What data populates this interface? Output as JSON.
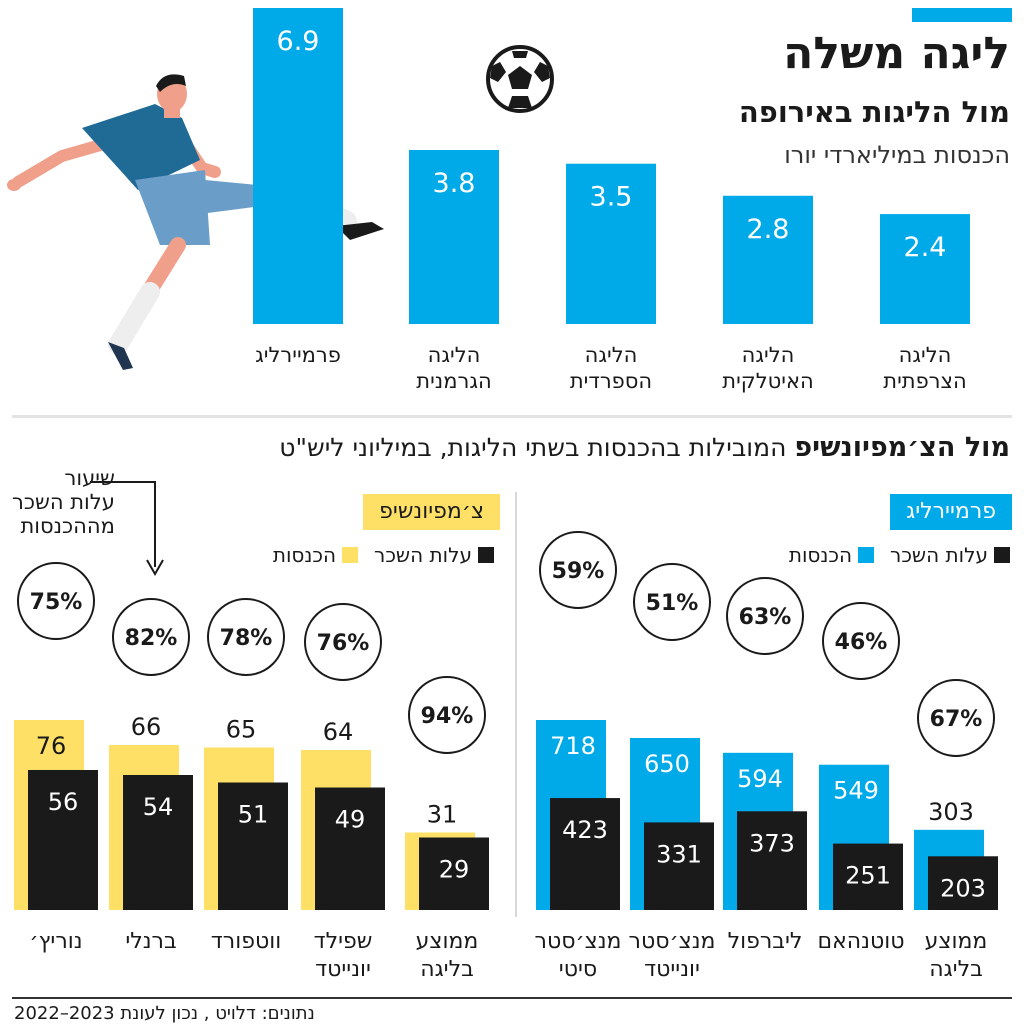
{
  "header": {
    "title": "ליגה משלה",
    "subtitle": "מול הליגות באירופה",
    "units": "הכנסות במיליארדי יורו"
  },
  "section2": {
    "heading_bold": "מול הצ׳מפיונשיפ",
    "heading_rest": " המובילות בהכנסות בשתי הליגות, במיליוני ליש\"ט"
  },
  "legend": {
    "revenue": "הכנסות",
    "wages": "עלות השכר"
  },
  "annotation": {
    "wage_ratio": [
      "שיעור",
      "עלות השכר",
      "מההכנסות"
    ]
  },
  "source": "נתונים: דלויט , נכון לעונת 2023–2022",
  "colors": {
    "accent": "#00a9e8",
    "champ_yellow": "#ffe066",
    "dark": "#1a1a1a",
    "white": "#ffffff"
  },
  "icons": {
    "ball": "soccer-ball-icon",
    "player": "soccer-player-illustration"
  },
  "chart_data": [
    {
      "type": "bar",
      "categories": [
        [
          "פרמיירליג"
        ],
        [
          "הליגה",
          "הגרמנית"
        ],
        [
          "הליגה",
          "הספרדית"
        ],
        [
          "הליגה",
          "האיטלקית"
        ],
        [
          "הליגה",
          "הצרפתית"
        ]
      ],
      "values": [
        6.9,
        3.8,
        3.5,
        2.8,
        2.4
      ],
      "ylim": [
        0,
        6.9
      ]
    },
    {
      "type": "bar",
      "title": "פרמיירליג",
      "categories": [
        [
          "מנצ׳סטר",
          "סיטי"
        ],
        [
          "מנצ׳סטר",
          "יונייטד"
        ],
        [
          "ליברפול"
        ],
        [
          "טוטנהאם"
        ],
        [
          "ממוצע",
          "בליגה"
        ]
      ],
      "series": [
        {
          "name": "הכנסות",
          "values": [
            718,
            650,
            594,
            549,
            303
          ]
        },
        {
          "name": "עלות השכר",
          "values": [
            423,
            331,
            373,
            251,
            203
          ]
        }
      ],
      "ratios": [
        "59%",
        "51%",
        "63%",
        "46%",
        "67%"
      ],
      "ylim": [
        0,
        718
      ]
    },
    {
      "type": "bar",
      "title": "צ׳מפיונשיפ",
      "categories": [
        [
          "נוריץ׳"
        ],
        [
          "ברנלי"
        ],
        [
          "ווטפורד"
        ],
        [
          "שפילד",
          "יונייטד"
        ],
        [
          "ממוצע",
          "בליגה"
        ]
      ],
      "series": [
        {
          "name": "הכנסות",
          "values": [
            76,
            66,
            65,
            64,
            31
          ]
        },
        {
          "name": "עלות השכר",
          "values": [
            56,
            54,
            51,
            49,
            29
          ]
        }
      ],
      "ratios": [
        "75%",
        "82%",
        "78%",
        "76%",
        "94%"
      ],
      "ylim": [
        0,
        76
      ]
    }
  ]
}
